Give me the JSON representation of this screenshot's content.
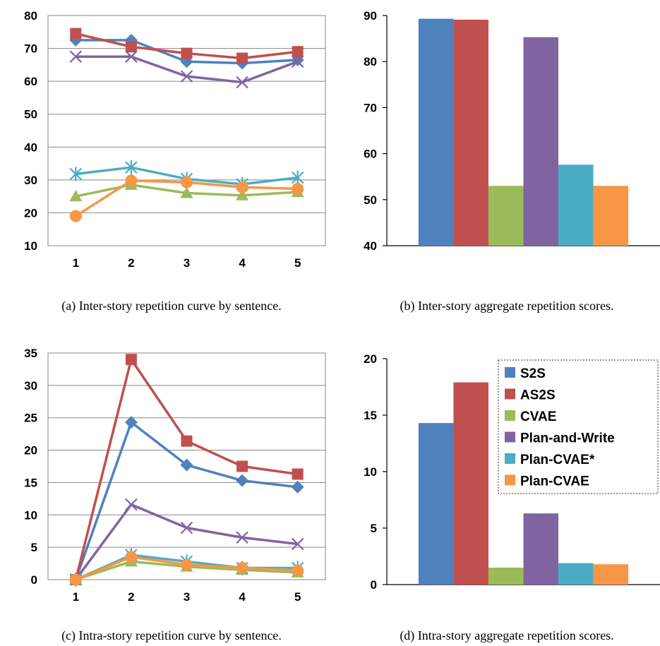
{
  "colors": {
    "S2S": "#4F81BD",
    "AS2S": "#C0504D",
    "CVAE": "#9BBB59",
    "Plan-and-Write": "#8064A2",
    "Plan-CVAE*": "#4BACC6",
    "Plan-CVAE": "#F79646"
  },
  "legend": [
    "S2S",
    "AS2S",
    "CVAE",
    "Plan-and-Write",
    "Plan-CVAE*",
    "Plan-CVAE"
  ],
  "chart_data": [
    {
      "type": "line",
      "caption": "(a)  Inter-story repetition curve by sentence.",
      "x": [
        1,
        2,
        3,
        4,
        5
      ],
      "ylim": [
        10,
        80
      ],
      "yticks": [
        10,
        20,
        30,
        40,
        50,
        60,
        70,
        80
      ],
      "series": [
        {
          "name": "S2S",
          "marker": "diamond",
          "values": [
            72.5,
            72.5,
            66,
            65.5,
            66.5
          ]
        },
        {
          "name": "AS2S",
          "marker": "square",
          "values": [
            74.5,
            70.5,
            68.5,
            67,
            69
          ]
        },
        {
          "name": "CVAE",
          "marker": "triangle",
          "values": [
            25,
            28.5,
            26,
            25.3,
            26.3
          ]
        },
        {
          "name": "Plan-and-Write",
          "marker": "x",
          "values": [
            67.5,
            67.5,
            61.5,
            59.7,
            66
          ]
        },
        {
          "name": "Plan-CVAE*",
          "marker": "asterisk",
          "values": [
            31.8,
            33.8,
            30.3,
            28.7,
            30.7
          ]
        },
        {
          "name": "Plan-CVAE",
          "marker": "circle",
          "values": [
            19,
            29.8,
            29.3,
            27.8,
            27.3
          ]
        }
      ]
    },
    {
      "type": "bar",
      "caption": "(b)  Inter-story aggregate repetition scores.",
      "ylim": [
        40,
        90
      ],
      "yticks": [
        40,
        50,
        60,
        70,
        80,
        90
      ],
      "series": [
        {
          "name": "S2S",
          "values": [
            89.3
          ]
        },
        {
          "name": "AS2S",
          "values": [
            89.1
          ]
        },
        {
          "name": "CVAE",
          "values": [
            53
          ]
        },
        {
          "name": "Plan-and-Write",
          "values": [
            85.3
          ]
        },
        {
          "name": "Plan-CVAE*",
          "values": [
            57.6
          ]
        },
        {
          "name": "Plan-CVAE",
          "values": [
            53
          ]
        }
      ]
    },
    {
      "type": "line",
      "caption": "(c)  Intra-story repetition curve by sentence.",
      "x": [
        1,
        2,
        3,
        4,
        5
      ],
      "ylim": [
        0,
        35
      ],
      "yticks": [
        0,
        5,
        10,
        15,
        20,
        25,
        30,
        35
      ],
      "series": [
        {
          "name": "S2S",
          "marker": "diamond",
          "values": [
            0,
            24.3,
            17.7,
            15.3,
            14.3
          ]
        },
        {
          "name": "AS2S",
          "marker": "square",
          "values": [
            0,
            34,
            21.4,
            17.5,
            16.3
          ]
        },
        {
          "name": "CVAE",
          "marker": "triangle",
          "values": [
            0,
            2.8,
            2,
            1.5,
            1.1
          ]
        },
        {
          "name": "Plan-and-Write",
          "marker": "x",
          "values": [
            0,
            11.6,
            8,
            6.5,
            5.5
          ]
        },
        {
          "name": "Plan-CVAE*",
          "marker": "asterisk",
          "values": [
            0,
            3.8,
            2.8,
            1.8,
            1.8
          ]
        },
        {
          "name": "Plan-CVAE",
          "marker": "circle",
          "values": [
            0,
            3.5,
            2.3,
            1.8,
            1.4
          ]
        }
      ]
    },
    {
      "type": "bar",
      "caption": "(d)  Intra-story aggregate repetition scores.",
      "ylim": [
        0,
        20
      ],
      "yticks": [
        0,
        5,
        10,
        15,
        20
      ],
      "series": [
        {
          "name": "S2S",
          "values": [
            14.3
          ]
        },
        {
          "name": "AS2S",
          "values": [
            17.9
          ]
        },
        {
          "name": "CVAE",
          "values": [
            1.5
          ]
        },
        {
          "name": "Plan-and-Write",
          "values": [
            6.3
          ]
        },
        {
          "name": "Plan-CVAE*",
          "values": [
            1.9
          ]
        },
        {
          "name": "Plan-CVAE",
          "values": [
            1.8
          ]
        }
      ]
    }
  ]
}
